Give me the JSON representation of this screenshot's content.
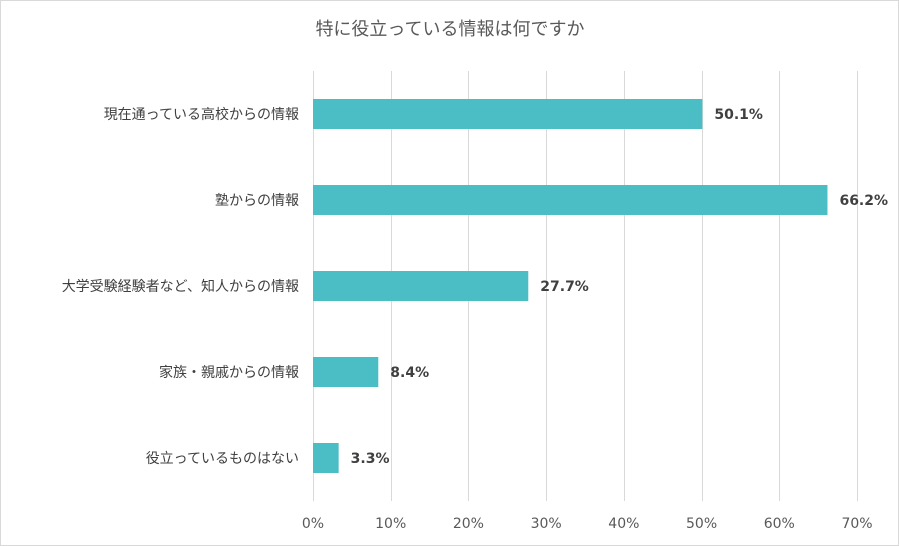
{
  "chart_data": {
    "type": "bar",
    "orientation": "horizontal",
    "title": "特に役立っている情報は何ですか",
    "categories": [
      "現在通っている高校からの情報",
      "塾からの情報",
      "大学受験経験者など、知人からの情報",
      "家族・親戚からの情報",
      "役立っているものはない"
    ],
    "values": [
      50.1,
      66.2,
      27.7,
      8.4,
      3.3
    ],
    "data_labels": [
      "50.1%",
      "66.2%",
      "27.7%",
      "8.4%",
      "3.3%"
    ],
    "xlim": [
      0,
      70
    ],
    "xticks": [
      0,
      10,
      20,
      30,
      40,
      50,
      60,
      70
    ],
    "xtick_labels": [
      "0%",
      "10%",
      "20%",
      "30%",
      "40%",
      "50%",
      "60%",
      "70%"
    ],
    "grid": true,
    "legend": "none",
    "bar_color": "#4bbdc5",
    "grid_color": "#d9d9d9"
  }
}
